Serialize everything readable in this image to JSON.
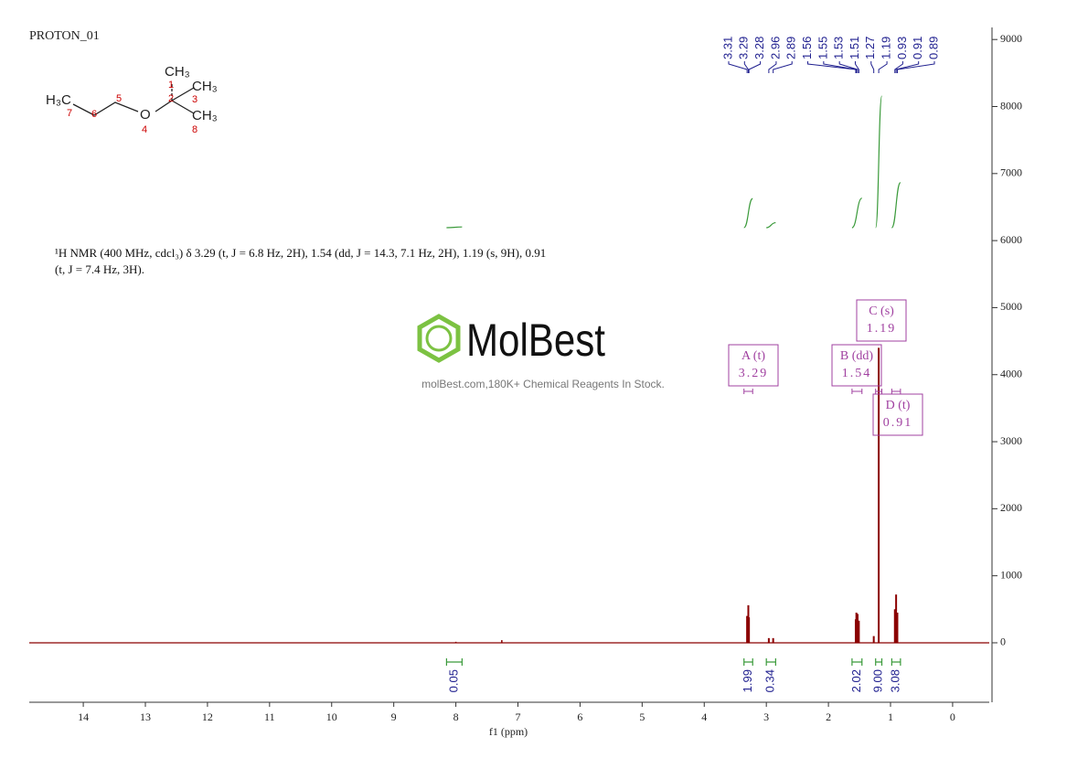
{
  "title": "PROTON_01",
  "structure": {
    "atoms": [
      "H₃C",
      "O",
      "CH₃",
      "CH₃",
      "CH₃"
    ],
    "numbers": [
      "1",
      "2",
      "3",
      "4",
      "5",
      "6",
      "7",
      "8"
    ]
  },
  "description": "¹H NMR (400 MHz, cdcl₃) δ 3.29 (t, J = 6.8 Hz, 2H), 1.54 (dd, J = 14.3, 7.1 Hz, 2H), 1.19 (s, 9H), 0.91 (t, J = 7.4 Hz, 3H).",
  "watermark": {
    "brand": "MolBest",
    "tagline": "molBest.com,180K+ Chemical Reagents In Stock."
  },
  "chart_data": {
    "type": "nmr",
    "x_label": "f1 (ppm)",
    "xlim": [
      14.87,
      -0.59
    ],
    "xticks": [
      14,
      13,
      12,
      11,
      10,
      9,
      8,
      7,
      6,
      5,
      4,
      3,
      2,
      1,
      0
    ],
    "ylim": [
      -887,
      9180
    ],
    "yticks": [
      0,
      1000,
      2000,
      3000,
      4000,
      5000,
      6000,
      7000,
      8000,
      9000
    ],
    "color": "#8b0000",
    "peaks": {
      "x": [
        3.31,
        3.29,
        3.28,
        2.96,
        2.89,
        1.56,
        1.55,
        1.53,
        1.51,
        1.27,
        1.19,
        0.93,
        0.91,
        0.89
      ],
      "values": [
        400,
        560,
        380,
        70,
        70,
        350,
        450,
        430,
        330,
        100,
        4400,
        500,
        720,
        450
      ]
    },
    "unlabeled_peaks": {
      "x": [
        8.0,
        7.26
      ],
      "values": [
        15,
        40
      ]
    },
    "peak_label_color": "#1f1f8f",
    "integrals": {
      "ranges": [
        [
          8.15,
          7.9
        ],
        [
          3.36,
          3.22
        ],
        [
          3.0,
          2.85
        ],
        [
          1.62,
          1.46
        ],
        [
          1.24,
          1.14
        ],
        [
          0.98,
          0.84
        ]
      ],
      "values": [
        0.05,
        1.99,
        0.34,
        2.02,
        9,
        3.08
      ],
      "value_labels": [
        "0.05",
        "1.99",
        "0.34",
        "2.02",
        "9.00",
        "3.08"
      ],
      "color": "#3a9a3a"
    },
    "multiplets": [
      {
        "label": "A (t)",
        "shift": 3.29,
        "range": [
          3.36,
          3.22
        ]
      },
      {
        "label": "B (dd)",
        "shift": 1.54,
        "range": [
          1.62,
          1.46
        ]
      },
      {
        "label": "C (s)",
        "shift": 1.19,
        "range": [
          1.24,
          1.14
        ]
      },
      {
        "label": "D (t)",
        "shift": 0.91,
        "range": [
          0.98,
          0.84
        ]
      }
    ],
    "multiplet_color": "#a040a0"
  }
}
